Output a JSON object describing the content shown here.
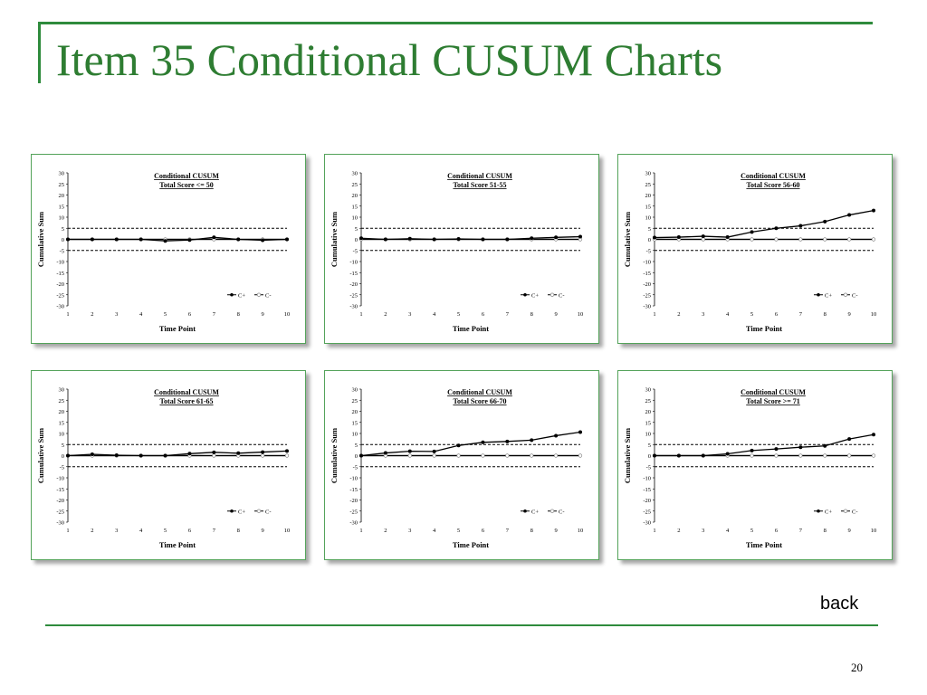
{
  "slide": {
    "title": "Item 35 Conditional CUSUM Charts",
    "back_label": "back",
    "page_number": "20",
    "accent_color": "#2e7d32"
  },
  "chart_data": [
    {
      "type": "line",
      "title": "Conditional CUSUM",
      "subtitle": "Total Score <= 50",
      "xlabel": "Time Point",
      "ylabel": "Cumulative Sum",
      "x": [
        1,
        2,
        3,
        4,
        5,
        6,
        7,
        8,
        9,
        10
      ],
      "ylim": [
        -30,
        30
      ],
      "yticks": [
        30,
        25,
        20,
        15,
        10,
        5,
        0,
        -5,
        -10,
        -15,
        -20,
        -25,
        -30
      ],
      "control_limits": [
        5,
        -5
      ],
      "legend_position": "bottom-right",
      "series": [
        {
          "name": "C+",
          "values": [
            0,
            0,
            0,
            0,
            -0.7,
            -0.3,
            0.9,
            0,
            -0.4,
            0
          ]
        },
        {
          "name": "C-",
          "values": [
            0,
            0,
            0,
            0,
            0,
            0,
            0,
            0,
            0,
            0
          ]
        }
      ]
    },
    {
      "type": "line",
      "title": "Conditional CUSUM",
      "subtitle": "Total Score 51-55",
      "xlabel": "Time Point",
      "ylabel": "Cumulative Sum",
      "x": [
        1,
        2,
        3,
        4,
        5,
        6,
        7,
        8,
        9,
        10
      ],
      "ylim": [
        -30,
        30
      ],
      "yticks": [
        30,
        25,
        20,
        15,
        10,
        5,
        0,
        -5,
        -10,
        -15,
        -20,
        -25,
        -30
      ],
      "control_limits": [
        5,
        -5
      ],
      "legend_position": "bottom-right",
      "series": [
        {
          "name": "C+",
          "values": [
            0.5,
            0,
            0.3,
            0,
            0.2,
            0,
            0,
            0.5,
            0.9,
            1.2
          ]
        },
        {
          "name": "C-",
          "values": [
            0,
            0,
            0,
            0,
            0,
            0,
            0,
            0,
            0,
            0
          ]
        }
      ]
    },
    {
      "type": "line",
      "title": "Conditional CUSUM",
      "subtitle": "Total Score 56-60",
      "xlabel": "Time Point",
      "ylabel": "Cumulative Sum",
      "x": [
        1,
        2,
        3,
        4,
        5,
        6,
        7,
        8,
        9,
        10
      ],
      "ylim": [
        -30,
        30
      ],
      "yticks": [
        30,
        25,
        20,
        15,
        10,
        5,
        0,
        -5,
        -10,
        -15,
        -20,
        -25,
        -30
      ],
      "control_limits": [
        5,
        -5
      ],
      "legend_position": "bottom-right",
      "series": [
        {
          "name": "C+",
          "values": [
            0.8,
            1,
            1.4,
            1,
            3.3,
            5,
            6.1,
            8,
            11,
            13
          ]
        },
        {
          "name": "C-",
          "values": [
            0,
            0,
            0,
            0,
            0,
            0,
            0,
            0,
            0,
            0
          ]
        }
      ]
    },
    {
      "type": "line",
      "title": "Conditional CUSUM",
      "subtitle": "Total Score 61-65",
      "xlabel": "Time Point",
      "ylabel": "Cumulative Sum",
      "x": [
        1,
        2,
        3,
        4,
        5,
        6,
        7,
        8,
        9,
        10
      ],
      "ylim": [
        -30,
        30
      ],
      "yticks": [
        30,
        25,
        20,
        15,
        10,
        5,
        0,
        -5,
        -10,
        -15,
        -20,
        -25,
        -30
      ],
      "control_limits": [
        5,
        -5
      ],
      "legend_position": "bottom-right",
      "series": [
        {
          "name": "C+",
          "values": [
            0,
            0.6,
            0.2,
            0,
            0,
            0.9,
            1.5,
            1.1,
            1.6,
            2.1
          ]
        },
        {
          "name": "C-",
          "values": [
            0,
            0,
            0,
            0,
            0,
            0,
            0,
            0,
            0,
            0
          ]
        }
      ]
    },
    {
      "type": "line",
      "title": "Conditional CUSUM",
      "subtitle": "Total Score 66-70",
      "xlabel": "Time Point",
      "ylabel": "Cumulative Sum",
      "x": [
        1,
        2,
        3,
        4,
        5,
        6,
        7,
        8,
        9,
        10
      ],
      "ylim": [
        -30,
        30
      ],
      "yticks": [
        30,
        25,
        20,
        15,
        10,
        5,
        0,
        -5,
        -10,
        -15,
        -20,
        -25,
        -30
      ],
      "control_limits": [
        5,
        -5
      ],
      "legend_position": "bottom-right",
      "series": [
        {
          "name": "C+",
          "values": [
            0,
            1.2,
            2,
            1.9,
            4.6,
            6,
            6.4,
            7,
            9,
            10.6
          ]
        },
        {
          "name": "C-",
          "values": [
            0,
            0,
            0,
            0,
            0,
            0,
            0,
            0,
            0,
            0
          ]
        }
      ]
    },
    {
      "type": "line",
      "title": "Conditional CUSUM",
      "subtitle": "Total Score >= 71",
      "xlabel": "Time Point",
      "ylabel": "Cumulative Sum",
      "x": [
        1,
        2,
        3,
        4,
        5,
        6,
        7,
        8,
        9,
        10
      ],
      "ylim": [
        -30,
        30
      ],
      "yticks": [
        30,
        25,
        20,
        15,
        10,
        5,
        0,
        -5,
        -10,
        -15,
        -20,
        -25,
        -30
      ],
      "control_limits": [
        5,
        -5
      ],
      "legend_position": "bottom-right",
      "series": [
        {
          "name": "C+",
          "values": [
            0,
            0,
            0,
            0.8,
            2.3,
            3,
            3.8,
            4.4,
            7.5,
            9.5
          ]
        },
        {
          "name": "C-",
          "values": [
            0,
            0,
            0,
            0,
            0,
            0,
            0,
            0,
            0,
            0
          ]
        }
      ]
    }
  ]
}
